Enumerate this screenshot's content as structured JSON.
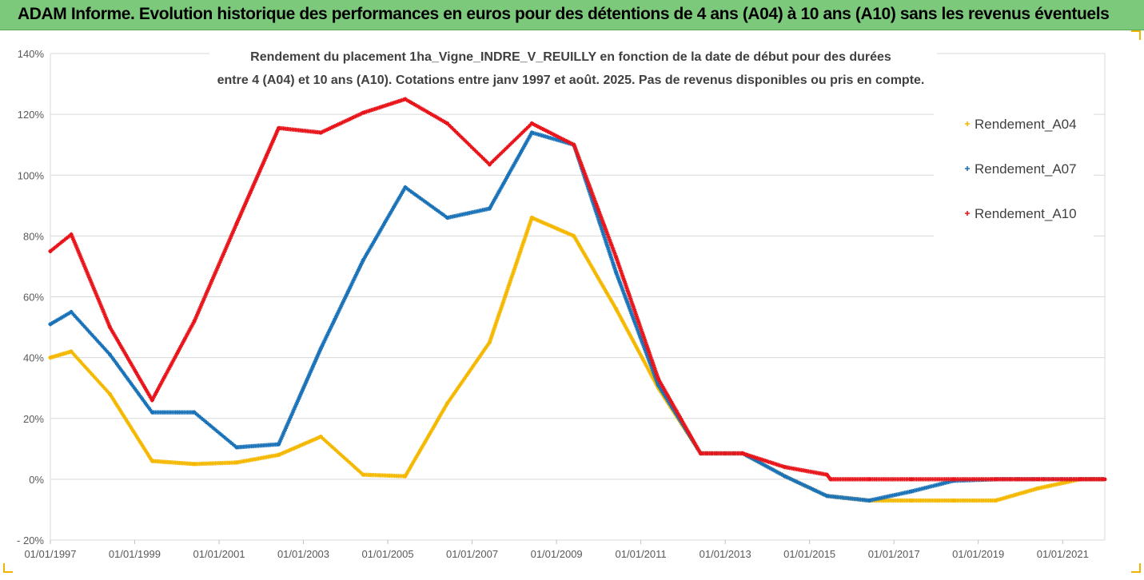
{
  "banner": {
    "title": "ADAM Informe. Evolution historique des performances en euros pour des détentions de 4 ans (A04) à 10 ans (A10) sans les revenus éventuels",
    "background": "#7dc97c"
  },
  "chart_data": {
    "type": "scatter",
    "title_line1": "Rendement du placement 1ha_Vigne_INDRE_V_REUILLY en fonction de la date de début pour des durées",
    "title_line2": "entre 4 (A04) et 10 ans (A10). Cotations entre janv 1997 et août. 2025. Pas de revenus disponibles ou pris en compte.",
    "xlabel": "",
    "ylabel": "",
    "x_axis": "date",
    "xlim": [
      "1997-01-01",
      "2022-01-01"
    ],
    "ylim": [
      -20,
      140
    ],
    "y_unit": "%",
    "y_ticks": [
      "- 20%",
      "0%",
      "20%",
      "40%",
      "60%",
      "80%",
      "100%",
      "120%",
      "140%"
    ],
    "y_tick_values": [
      -20,
      0,
      20,
      40,
      60,
      80,
      100,
      120,
      140
    ],
    "x_ticks": [
      "01/01/1997",
      "01/01/1999",
      "01/01/2001",
      "01/01/2003",
      "01/01/2005",
      "01/01/2007",
      "01/01/2009",
      "01/01/2011",
      "01/01/2013",
      "01/01/2015",
      "01/01/2017",
      "01/01/2019",
      "01/01/2021"
    ],
    "x_tick_values": [
      "1997-01-01",
      "1999-01-01",
      "2001-01-01",
      "2003-01-01",
      "2005-01-01",
      "2007-01-01",
      "2009-01-01",
      "2011-01-01",
      "2013-01-01",
      "2015-01-01",
      "2017-01-01",
      "2019-01-01",
      "2021-01-01"
    ],
    "grid": true,
    "legend_position": "right",
    "series": [
      {
        "name": "Rendement_A04",
        "color": "#f5b800",
        "points": [
          [
            "1997-01-01",
            40
          ],
          [
            "1997-07-01",
            42
          ],
          [
            "1998-06-01",
            28
          ],
          [
            "1999-06-01",
            6
          ],
          [
            "2000-06-01",
            5
          ],
          [
            "2001-06-01",
            5.5
          ],
          [
            "2002-06-01",
            8
          ],
          [
            "2003-06-01",
            14
          ],
          [
            "2004-06-01",
            1.5
          ],
          [
            "2005-06-01",
            1
          ],
          [
            "2006-06-01",
            25
          ],
          [
            "2007-06-01",
            45
          ],
          [
            "2008-06-01",
            86
          ],
          [
            "2009-06-01",
            80
          ],
          [
            "2010-06-01",
            56
          ],
          [
            "2011-06-01",
            30
          ],
          [
            "2012-06-01",
            8.5
          ],
          [
            "2013-06-01",
            8.5
          ],
          [
            "2014-06-01",
            1
          ],
          [
            "2015-06-01",
            -5.5
          ],
          [
            "2016-06-01",
            -7
          ],
          [
            "2017-06-01",
            -7
          ],
          [
            "2018-06-01",
            -7
          ],
          [
            "2019-06-01",
            -7
          ],
          [
            "2020-06-01",
            -3
          ],
          [
            "2021-06-01",
            0
          ],
          [
            "2022-01-01",
            0
          ]
        ]
      },
      {
        "name": "Rendement_A07",
        "color": "#1a72b8",
        "points": [
          [
            "1997-01-01",
            51
          ],
          [
            "1997-07-01",
            55
          ],
          [
            "1998-06-01",
            41
          ],
          [
            "1999-06-01",
            22
          ],
          [
            "2000-06-01",
            22
          ],
          [
            "2001-06-01",
            10.5
          ],
          [
            "2002-06-01",
            11.5
          ],
          [
            "2003-06-01",
            43
          ],
          [
            "2004-06-01",
            72
          ],
          [
            "2005-06-01",
            96
          ],
          [
            "2006-06-01",
            86
          ],
          [
            "2007-06-01",
            89
          ],
          [
            "2008-06-01",
            114
          ],
          [
            "2009-06-01",
            110
          ],
          [
            "2010-06-01",
            68
          ],
          [
            "2011-06-01",
            31
          ],
          [
            "2012-06-01",
            8.5
          ],
          [
            "2013-06-01",
            8.5
          ],
          [
            "2014-06-01",
            1
          ],
          [
            "2015-06-01",
            -5.5
          ],
          [
            "2016-06-01",
            -7
          ],
          [
            "2017-06-01",
            -4
          ],
          [
            "2018-06-01",
            -0.5
          ],
          [
            "2019-06-01",
            0
          ],
          [
            "2020-06-01",
            0
          ],
          [
            "2021-06-01",
            0
          ],
          [
            "2022-01-01",
            0
          ]
        ]
      },
      {
        "name": "Rendement_A10",
        "color": "#e8141a",
        "points": [
          [
            "1997-01-01",
            75
          ],
          [
            "1997-07-01",
            80.5
          ],
          [
            "1998-06-01",
            50
          ],
          [
            "1999-06-01",
            26
          ],
          [
            "2000-06-01",
            52
          ],
          [
            "2001-06-01",
            84
          ],
          [
            "2002-06-01",
            115.5
          ],
          [
            "2003-06-01",
            114
          ],
          [
            "2004-06-01",
            120.5
          ],
          [
            "2005-06-01",
            125
          ],
          [
            "2006-06-01",
            117
          ],
          [
            "2007-06-01",
            103.5
          ],
          [
            "2008-06-01",
            117
          ],
          [
            "2009-06-01",
            110
          ],
          [
            "2010-06-01",
            73
          ],
          [
            "2011-06-01",
            33
          ],
          [
            "2012-06-01",
            8.5
          ],
          [
            "2013-06-01",
            8.5
          ],
          [
            "2014-06-01",
            4
          ],
          [
            "2015-06-01",
            1.5
          ],
          [
            "2015-07-01",
            0
          ],
          [
            "2016-06-01",
            0
          ],
          [
            "2017-06-01",
            0
          ],
          [
            "2018-06-01",
            0
          ],
          [
            "2019-06-01",
            0
          ],
          [
            "2020-06-01",
            0
          ],
          [
            "2021-06-01",
            0
          ],
          [
            "2022-01-01",
            0
          ]
        ]
      }
    ]
  }
}
